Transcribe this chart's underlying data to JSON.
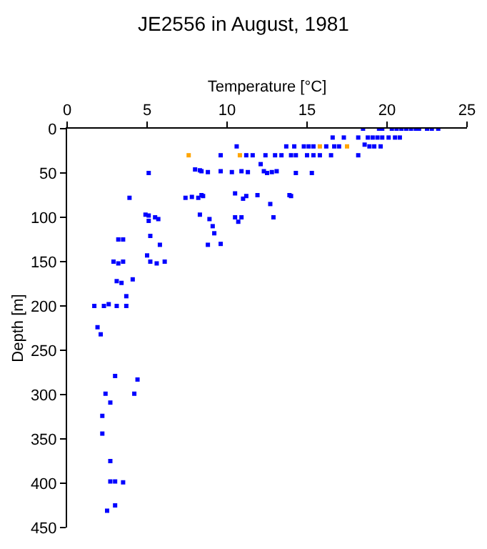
{
  "chart_data": {
    "type": "scatter",
    "title": "JE2556 in August, 1981",
    "xlabel": "Temperature [°C]",
    "ylabel": "Depth [m]",
    "xlim": [
      0,
      25
    ],
    "xticks": [
      0,
      5,
      10,
      15,
      20,
      25
    ],
    "ylim": [
      450,
      0
    ],
    "yticks": [
      0,
      50,
      100,
      150,
      200,
      250,
      300,
      350,
      400,
      450
    ],
    "marker": "square",
    "series": [
      {
        "color": "#0000ff",
        "x": [
          18.5,
          19.5,
          19.7,
          20.3,
          20.6,
          20.9,
          21.2,
          21.5,
          21.8,
          22.0,
          22.5,
          22.8,
          23.2,
          16.6,
          17.3,
          18.2,
          18.8,
          19.1,
          19.4,
          19.7,
          20.1,
          20.5,
          20.8,
          10.6,
          13.7,
          14.2,
          14.8,
          15.1,
          15.4,
          16.2,
          16.7,
          17.0,
          18.6,
          18.9,
          19.2,
          19.6,
          9.6,
          11.2,
          11.6,
          12.4,
          13.0,
          13.4,
          14.0,
          14.3,
          15.0,
          15.4,
          15.8,
          16.5,
          18.2,
          12.1,
          5.1,
          8.0,
          8.3,
          8.4,
          8.8,
          9.6,
          10.3,
          10.9,
          11.3,
          12.3,
          12.5,
          12.8,
          13.1,
          14.3,
          15.3,
          3.9,
          7.4,
          7.8,
          8.2,
          8.4,
          8.5,
          10.5,
          11.0,
          11.2,
          11.9,
          13.9,
          14.0,
          12.7,
          4.9,
          5.1,
          5.5,
          5.7,
          5.1,
          8.3,
          8.9,
          9.1,
          10.5,
          10.7,
          10.9,
          12.9,
          3.2,
          3.5,
          5.2,
          5.8,
          8.8,
          9.2,
          9.6,
          2.9,
          3.2,
          3.5,
          5.0,
          5.2,
          5.6,
          6.1,
          3.1,
          3.4,
          4.1,
          3.7,
          1.7,
          2.3,
          2.6,
          3.1,
          3.7,
          1.9,
          2.1,
          3.0,
          4.4,
          2.4,
          4.2,
          2.7,
          2.2,
          2.2,
          2.7,
          2.7,
          3.0,
          3.5,
          3.0,
          2.5
        ],
        "values": [
          0,
          0,
          0,
          0,
          0,
          0,
          0,
          0,
          0,
          0,
          0,
          0,
          0,
          10,
          10,
          10,
          10,
          10,
          10,
          10,
          10,
          10,
          10,
          20,
          20,
          20,
          20,
          20,
          20,
          20,
          20,
          20,
          18,
          20,
          20,
          20,
          30,
          30,
          30,
          30,
          30,
          30,
          30,
          30,
          30,
          30,
          30,
          30,
          30,
          40,
          50,
          46,
          47,
          48,
          49,
          48,
          49,
          48,
          49,
          48,
          50,
          49,
          48,
          50,
          50,
          78,
          78,
          77,
          78,
          75,
          76,
          73,
          79,
          76,
          75,
          75,
          76,
          85,
          97,
          98,
          100,
          102,
          104,
          97,
          102,
          110,
          100,
          105,
          100,
          100,
          125,
          125,
          121,
          131,
          131,
          118,
          130,
          150,
          152,
          150,
          143,
          150,
          152,
          150,
          172,
          174,
          170,
          189,
          200,
          200,
          198,
          200,
          200,
          224,
          232,
          279,
          283,
          299,
          299,
          309,
          324,
          344,
          375,
          398,
          398,
          399,
          425,
          431
        ]
      },
      {
        "color": "#ffa500",
        "x": [
          15.8,
          17.5,
          7.6,
          10.8
        ],
        "values": [
          20,
          20,
          30,
          30
        ]
      }
    ]
  }
}
